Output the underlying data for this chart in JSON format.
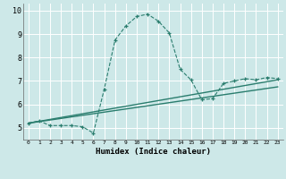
{
  "xlabel": "Humidex (Indice chaleur)",
  "ylabel": "",
  "bg_color": "#cde8e8",
  "grid_color": "#ffffff",
  "line_color": "#2a7d6e",
  "xlim": [
    -0.5,
    23.5
  ],
  "ylim": [
    4.5,
    10.3
  ],
  "xticks": [
    0,
    1,
    2,
    3,
    4,
    5,
    6,
    7,
    8,
    9,
    10,
    11,
    12,
    13,
    14,
    15,
    16,
    17,
    18,
    19,
    20,
    21,
    22,
    23
  ],
  "yticks": [
    5,
    6,
    7,
    8,
    9,
    10
  ],
  "curve1_x": [
    0,
    1,
    2,
    3,
    4,
    5,
    6,
    7,
    8,
    9,
    10,
    11,
    12,
    13,
    14,
    15,
    16,
    17,
    18,
    19,
    20,
    21,
    22,
    23
  ],
  "curve1_y": [
    5.2,
    5.3,
    5.1,
    5.1,
    5.1,
    5.05,
    4.78,
    6.65,
    8.75,
    9.35,
    9.75,
    9.85,
    9.55,
    9.05,
    7.5,
    7.05,
    6.2,
    6.25,
    6.9,
    7.0,
    7.1,
    7.05,
    7.15,
    7.1
  ],
  "curve2_x": [
    0,
    23
  ],
  "curve2_y": [
    5.2,
    7.05
  ],
  "curve3_x": [
    0,
    23
  ],
  "curve3_y": [
    5.2,
    6.75
  ]
}
